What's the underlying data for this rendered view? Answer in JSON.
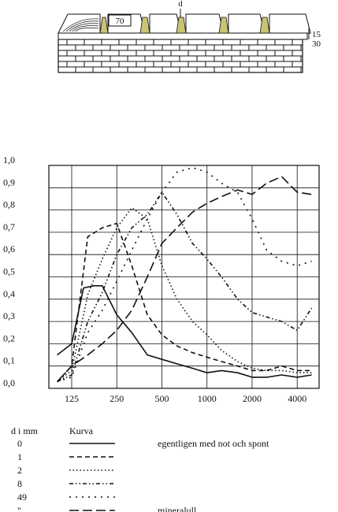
{
  "diagram": {
    "label_d": "d",
    "label_70": "70",
    "label_15": "15",
    "label_30": "30"
  },
  "chart_data": {
    "type": "line",
    "x_axis": {
      "scale": "log",
      "unit": "Hz",
      "ticks": [
        125,
        250,
        500,
        1000,
        2000,
        4000
      ],
      "tick_labels": [
        "125",
        "250",
        "500",
        "1000",
        "2000",
        "4000"
      ]
    },
    "y_axis": {
      "ticks": [
        0.0,
        0.1,
        0.2,
        0.3,
        0.4,
        0.5,
        0.6,
        0.7,
        0.8,
        0.9,
        1.0
      ],
      "tick_labels": [
        "0,0",
        "0,1",
        "0,2",
        "0,3",
        "0,4",
        "0,5",
        "0,6",
        "0,7",
        "0,8",
        "0,9",
        "1,0"
      ],
      "ylim": [
        0,
        1.0
      ]
    },
    "grid": true,
    "series": [
      {
        "key": "d0",
        "dash": "solid",
        "x": [
          100,
          125,
          150,
          175,
          200,
          250,
          315,
          400,
          500,
          630,
          800,
          1000,
          1250,
          1600,
          2000,
          2500,
          3150,
          4000,
          5000
        ],
        "y": [
          0.15,
          0.2,
          0.45,
          0.46,
          0.46,
          0.33,
          0.25,
          0.15,
          0.13,
          0.11,
          0.09,
          0.07,
          0.08,
          0.07,
          0.05,
          0.05,
          0.06,
          0.05,
          0.06
        ]
      },
      {
        "key": "d1",
        "dash": "6,4",
        "x": [
          100,
          125,
          160,
          200,
          250,
          315,
          400,
          500,
          630,
          800,
          1000,
          1250,
          1600,
          2000,
          2500,
          3150,
          4000,
          5000
        ],
        "y": [
          0.03,
          0.1,
          0.68,
          0.72,
          0.74,
          0.55,
          0.33,
          0.24,
          0.19,
          0.16,
          0.14,
          0.12,
          0.1,
          0.08,
          0.08,
          0.1,
          0.08,
          0.08
        ]
      },
      {
        "key": "d2",
        "dash": "1.5,3",
        "x": [
          100,
          125,
          160,
          200,
          250,
          315,
          400,
          500,
          630,
          800,
          1000,
          1250,
          1600,
          2000,
          2500,
          3150,
          4000,
          5000
        ],
        "y": [
          0.03,
          0.08,
          0.42,
          0.58,
          0.72,
          0.81,
          0.76,
          0.55,
          0.4,
          0.3,
          0.24,
          0.17,
          0.12,
          0.09,
          0.08,
          0.08,
          0.07,
          0.07
        ]
      },
      {
        "key": "d8",
        "dash": "5,3,1.5,3,1.5,3",
        "x": [
          100,
          125,
          160,
          200,
          250,
          315,
          400,
          500,
          630,
          800,
          1000,
          1250,
          1600,
          2000,
          2500,
          3150,
          4000,
          5000
        ],
        "y": [
          0.03,
          0.06,
          0.3,
          0.43,
          0.6,
          0.72,
          0.78,
          0.88,
          0.78,
          0.65,
          0.58,
          0.5,
          0.4,
          0.34,
          0.32,
          0.3,
          0.26,
          0.36
        ]
      },
      {
        "key": "d49",
        "dash": "2,6",
        "x": [
          100,
          125,
          160,
          200,
          250,
          315,
          400,
          500,
          630,
          800,
          1000,
          1250,
          1600,
          2000,
          2500,
          3150,
          4000,
          5000
        ],
        "y": [
          0.03,
          0.05,
          0.25,
          0.35,
          0.48,
          0.62,
          0.76,
          0.88,
          0.97,
          0.99,
          0.97,
          0.92,
          0.88,
          0.76,
          0.62,
          0.57,
          0.55,
          0.57
        ]
      },
      {
        "key": "mineral",
        "dash": "12,5",
        "x": [
          100,
          125,
          160,
          200,
          250,
          315,
          400,
          500,
          630,
          800,
          1000,
          1250,
          1600,
          2000,
          2500,
          3150,
          4000,
          5000
        ],
        "y": [
          0.03,
          0.1,
          0.15,
          0.2,
          0.26,
          0.35,
          0.5,
          0.65,
          0.72,
          0.79,
          0.83,
          0.86,
          0.89,
          0.87,
          0.92,
          0.95,
          0.88,
          0.87
        ]
      }
    ]
  },
  "legend": {
    "header_d": "d i mm",
    "header_curve": "Kurva",
    "rows": [
      {
        "d": "0",
        "desc": "egentligen med not och spont"
      },
      {
        "d": "1",
        "desc": ""
      },
      {
        "d": "2",
        "desc": ""
      },
      {
        "d": "8",
        "desc": ""
      },
      {
        "d": "49",
        "desc": ""
      },
      {
        "d": "\"",
        "desc": "mineralull"
      }
    ]
  }
}
